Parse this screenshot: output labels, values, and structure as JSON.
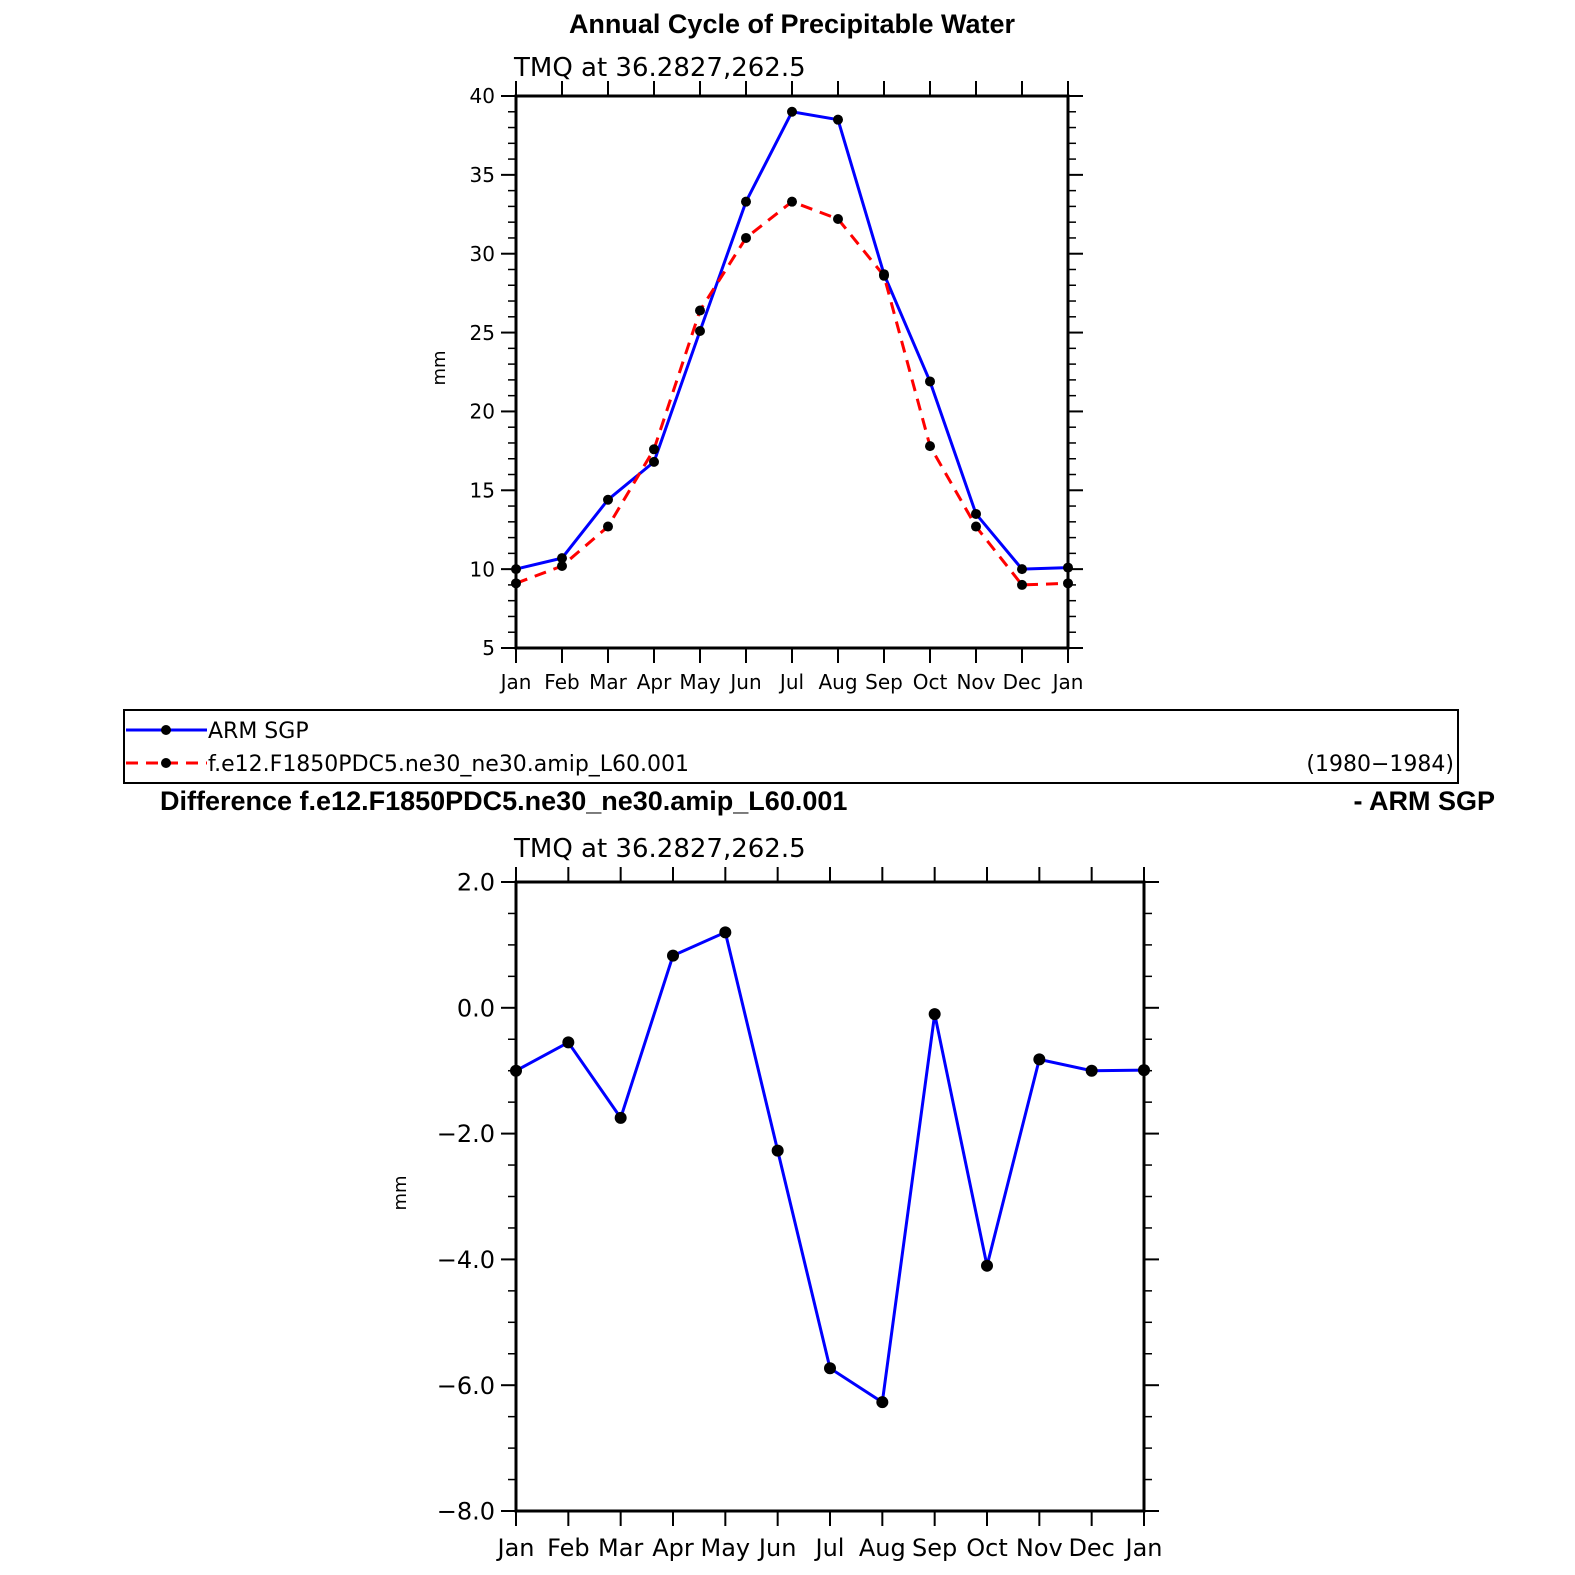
{
  "chart_data": [
    {
      "type": "line",
      "title": "Annual Cycle of Precipitable Water",
      "subtitle": "TMQ at 36.2827,262.5",
      "ylabel": "mm",
      "ylim": [
        5,
        40
      ],
      "yticks": [
        "5",
        "10",
        "15",
        "20",
        "25",
        "30",
        "35",
        "40"
      ],
      "categories": [
        "Jan",
        "Feb",
        "Mar",
        "Apr",
        "May",
        "Jun",
        "Jul",
        "Aug",
        "Sep",
        "Oct",
        "Nov",
        "Dec",
        "Jan"
      ],
      "series": [
        {
          "name": "ARM SGP",
          "color": "#0000ff",
          "dash": "solid",
          "values": [
            10.0,
            10.7,
            14.4,
            16.8,
            25.1,
            33.3,
            39.0,
            38.5,
            28.7,
            21.9,
            13.5,
            10.0,
            10.1
          ]
        },
        {
          "name": "f.e12.F1850PDC5.ne30_ne30.amip_L60.001",
          "color": "#ff0000",
          "dash": "dashed",
          "values": [
            9.1,
            10.2,
            12.7,
            17.6,
            26.4,
            31.0,
            33.3,
            32.2,
            28.6,
            17.8,
            12.7,
            9.0,
            9.1
          ]
        }
      ],
      "legend": {
        "placement": "bottom",
        "period": "(1980−1984)"
      }
    },
    {
      "type": "line",
      "title": "Difference f.e12.F1850PDC5.ne30_ne30.amip_L60.001",
      "title_right": "- ARM SGP",
      "subtitle": "TMQ at 36.2827,262.5",
      "ylabel": "mm",
      "ylim": [
        -8,
        2
      ],
      "yticks": [
        "−8.0",
        "−6.0",
        "−4.0",
        "−2.0",
        "0.0",
        "2.0"
      ],
      "categories": [
        "Jan",
        "Feb",
        "Mar",
        "Apr",
        "May",
        "Jun",
        "Jul",
        "Aug",
        "Sep",
        "Oct",
        "Nov",
        "Dec",
        "Jan"
      ],
      "series": [
        {
          "color": "#0000ff",
          "dash": "solid",
          "values": [
            -1.0,
            -0.55,
            -1.75,
            0.83,
            1.2,
            -2.27,
            -5.73,
            -6.27,
            -0.1,
            -4.1,
            -0.82,
            -1.0,
            -0.99
          ]
        }
      ]
    }
  ]
}
